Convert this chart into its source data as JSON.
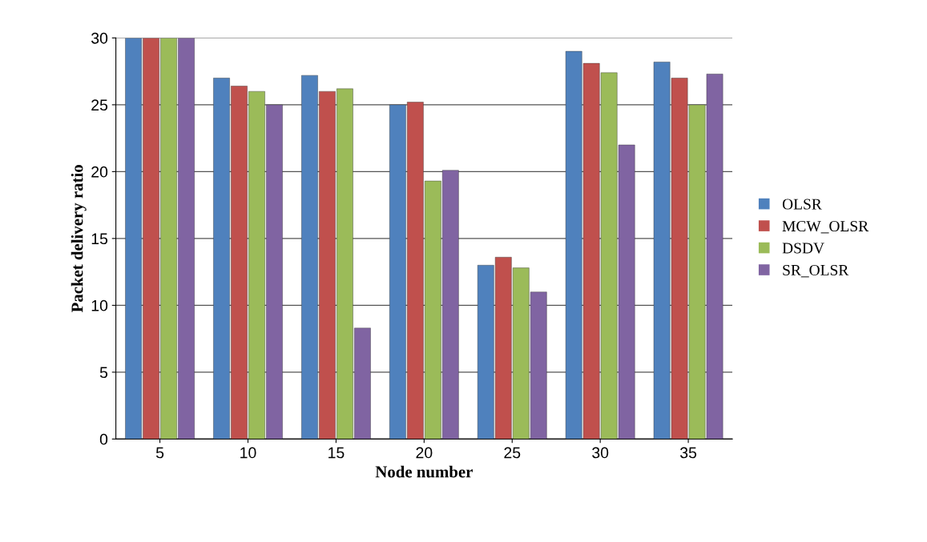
{
  "chart_data": {
    "type": "bar",
    "xlabel": "Node number",
    "ylabel": "Packet delivery ratio",
    "categories": [
      "5",
      "10",
      "15",
      "20",
      "25",
      "30",
      "35"
    ],
    "series": [
      {
        "name": "OLSR",
        "color": "#4f81bd",
        "values": [
          30,
          27.0,
          27.2,
          25.0,
          13.0,
          29.0,
          28.2
        ]
      },
      {
        "name": "MCW_OLSR",
        "color": "#c0504d",
        "values": [
          30,
          26.4,
          26.0,
          25.2,
          13.6,
          28.1,
          27.0
        ]
      },
      {
        "name": "DSDV",
        "color": "#9bbb59",
        "values": [
          30,
          26.0,
          26.2,
          19.3,
          12.8,
          27.4,
          25.0
        ]
      },
      {
        "name": "SR_OLSR",
        "color": "#8064a2",
        "values": [
          30,
          25.0,
          8.3,
          20.1,
          11.0,
          22.0,
          27.3
        ]
      }
    ],
    "ylim": [
      0,
      30
    ],
    "yticks": [
      0,
      5,
      10,
      15,
      20,
      25,
      30
    ],
    "grid": "y",
    "legend": "right"
  }
}
